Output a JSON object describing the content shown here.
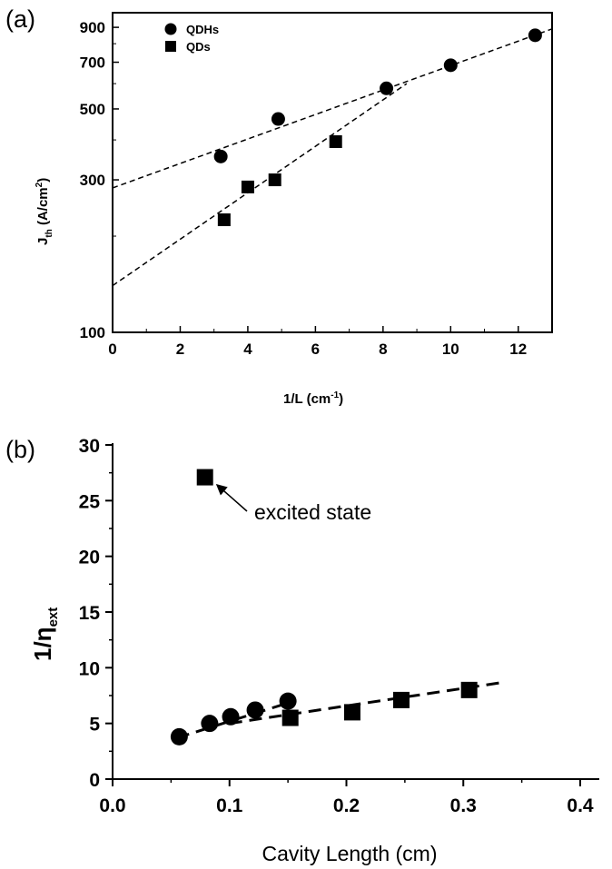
{
  "chart_data": [
    {
      "panel_label": "(a)",
      "type": "scatter",
      "xlabel": "1/L (cm",
      "xlabel_sup": "-1",
      "xlabel_end": ")",
      "ylabel": "J",
      "ylabel_sub": "th",
      "ylabel_mid": " (A/cm",
      "ylabel_sup": "2",
      "ylabel_end": ")",
      "xlim": [
        0,
        13
      ],
      "ylim": [
        100,
        1000
      ],
      "yscale": "log",
      "xticks": [
        0,
        2,
        4,
        6,
        8,
        10,
        12
      ],
      "yticks": [
        100,
        300,
        500,
        700,
        900
      ],
      "legend_position": "top-left",
      "series": [
        {
          "name": "QDHs",
          "marker": "circle",
          "x": [
            3.2,
            4.9,
            8.1,
            10.0,
            12.5
          ],
          "y": [
            355,
            465,
            580,
            685,
            850
          ],
          "fit": [
            [
              0,
              283
            ],
            [
              13,
              890
            ]
          ]
        },
        {
          "name": "QDs",
          "marker": "square",
          "x": [
            3.3,
            4.0,
            4.8,
            6.6
          ],
          "y": [
            225,
            285,
            300,
            395
          ],
          "fit": [
            [
              0,
              140
            ],
            [
              8.7,
              600
            ]
          ]
        }
      ]
    },
    {
      "panel_label": "(b)",
      "type": "scatter",
      "xlabel": "Cavity Length (cm)",
      "ylabel": "1/η",
      "ylabel_sub": "ext",
      "xlim": [
        0,
        0.4
      ],
      "ylim": [
        0,
        30
      ],
      "xticks": [
        "0.0",
        "0.1",
        "0.2",
        "0.3",
        "0.4"
      ],
      "yticks": [
        "0",
        "5",
        "10",
        "15",
        "20",
        "25",
        "30"
      ],
      "annotation": "excited state",
      "series": [
        {
          "marker": "circle",
          "x": [
            0.057,
            0.083,
            0.101,
            0.122,
            0.15
          ],
          "y": [
            3.8,
            5.0,
            5.6,
            6.2,
            7.0
          ],
          "fit": [
            [
              0.055,
              3.7
            ],
            [
              0.155,
              7.0
            ]
          ]
        },
        {
          "marker": "square",
          "x": [
            0.152,
            0.205,
            0.247,
            0.305
          ],
          "y": [
            5.5,
            6.0,
            7.1,
            8.0
          ],
          "fit": [
            [
              0.1,
              5.0
            ],
            [
              0.335,
              8.7
            ]
          ]
        },
        {
          "marker": "square",
          "x": [
            0.079
          ],
          "y": [
            27.1
          ]
        }
      ]
    }
  ]
}
